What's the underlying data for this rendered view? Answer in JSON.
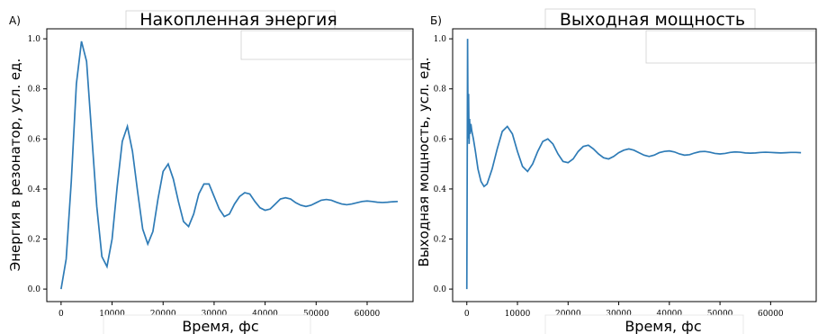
{
  "chart_data": [
    {
      "panel": "А)",
      "type": "line",
      "title": "Накопленная энергия",
      "xlabel": "Время, фс",
      "ylabel": "Энергия в резонатор, усл. ед.",
      "xlim": [
        -2800,
        69000
      ],
      "ylim": [
        -0.05,
        1.04
      ],
      "xticks": [
        0,
        10000,
        20000,
        30000,
        40000,
        50000,
        60000
      ],
      "yticks": [
        0.0,
        0.2,
        0.4,
        0.6,
        0.8,
        1.0
      ],
      "ytick_labels": [
        "0.0",
        "0.2",
        "0.4",
        "0.6",
        "0.8",
        "1.0"
      ],
      "color": "#2e7bb6",
      "grid": false,
      "series": [
        {
          "x": [
            0,
            1000,
            2000,
            3000,
            4000,
            5000,
            6000,
            7000,
            8000,
            9000,
            10000,
            11000,
            12000,
            13000,
            14000,
            15000,
            16000,
            17000,
            18000,
            19000,
            20000,
            21000,
            22000,
            23000,
            24000,
            25000,
            26000,
            27000,
            28000,
            29000,
            30000,
            31000,
            32000,
            33000,
            34000,
            35000,
            36000,
            37000,
            38000,
            39000,
            40000,
            41000,
            42000,
            43000,
            44000,
            45000,
            46000,
            47000,
            48000,
            49000,
            50000,
            51000,
            52000,
            53000,
            54000,
            55000,
            56000,
            57000,
            58000,
            59000,
            60000,
            61000,
            62000,
            63000,
            64000,
            65000,
            66000
          ],
          "y": [
            0.0,
            0.12,
            0.43,
            0.82,
            0.99,
            0.91,
            0.62,
            0.33,
            0.13,
            0.09,
            0.2,
            0.41,
            0.59,
            0.65,
            0.55,
            0.39,
            0.24,
            0.18,
            0.23,
            0.36,
            0.47,
            0.5,
            0.44,
            0.35,
            0.27,
            0.25,
            0.3,
            0.38,
            0.42,
            0.42,
            0.37,
            0.32,
            0.29,
            0.3,
            0.34,
            0.37,
            0.385,
            0.38,
            0.35,
            0.325,
            0.315,
            0.32,
            0.34,
            0.36,
            0.365,
            0.36,
            0.345,
            0.335,
            0.33,
            0.335,
            0.345,
            0.355,
            0.358,
            0.355,
            0.347,
            0.34,
            0.337,
            0.34,
            0.345,
            0.35,
            0.352,
            0.35,
            0.347,
            0.346,
            0.347,
            0.349,
            0.35
          ]
        }
      ]
    },
    {
      "panel": "Б)",
      "type": "line",
      "title": "Выходная мощность",
      "xlabel": "Время, фс",
      "ylabel": "Выходная мощность, усл. ед.",
      "xlim": [
        -2800,
        69000
      ],
      "ylim": [
        -0.05,
        1.04
      ],
      "xticks": [
        0,
        10000,
        20000,
        30000,
        40000,
        50000,
        60000
      ],
      "yticks": [
        0.0,
        0.2,
        0.4,
        0.6,
        0.8,
        1.0
      ],
      "ytick_labels": [
        "0.0",
        "0.2",
        "0.4",
        "0.6",
        "0.8",
        "1.0"
      ],
      "color": "#2e7bb6",
      "grid": false,
      "series": [
        {
          "x": [
            0,
            80,
            150,
            250,
            350,
            450,
            550,
            650,
            800,
            1000,
            1300,
            1700,
            2200,
            2800,
            3400,
            4000,
            5000,
            6000,
            7000,
            8000,
            9000,
            10000,
            11000,
            12000,
            13000,
            14000,
            15000,
            16000,
            17000,
            18000,
            19000,
            20000,
            21000,
            22000,
            23000,
            24000,
            25000,
            26000,
            27000,
            28000,
            29000,
            30000,
            31000,
            32000,
            33000,
            34000,
            35000,
            36000,
            37000,
            38000,
            39000,
            40000,
            41000,
            42000,
            43000,
            44000,
            45000,
            46000,
            47000,
            48000,
            49000,
            50000,
            51000,
            52000,
            53000,
            54000,
            55000,
            56000,
            57000,
            58000,
            59000,
            60000,
            61000,
            62000,
            63000,
            64000,
            65000,
            66000
          ],
          "y": [
            0.0,
            0.5,
            1.0,
            0.6,
            0.78,
            0.58,
            0.68,
            0.62,
            0.66,
            0.63,
            0.6,
            0.55,
            0.48,
            0.43,
            0.41,
            0.42,
            0.48,
            0.56,
            0.63,
            0.65,
            0.62,
            0.55,
            0.49,
            0.47,
            0.5,
            0.55,
            0.59,
            0.6,
            0.58,
            0.54,
            0.51,
            0.505,
            0.52,
            0.55,
            0.57,
            0.575,
            0.56,
            0.54,
            0.525,
            0.52,
            0.53,
            0.545,
            0.555,
            0.56,
            0.555,
            0.545,
            0.535,
            0.53,
            0.535,
            0.545,
            0.55,
            0.552,
            0.548,
            0.54,
            0.535,
            0.537,
            0.544,
            0.549,
            0.55,
            0.547,
            0.542,
            0.54,
            0.542,
            0.546,
            0.548,
            0.547,
            0.544,
            0.543,
            0.544,
            0.546,
            0.547,
            0.546,
            0.545,
            0.544,
            0.545,
            0.546,
            0.546,
            0.545
          ]
        }
      ]
    }
  ]
}
